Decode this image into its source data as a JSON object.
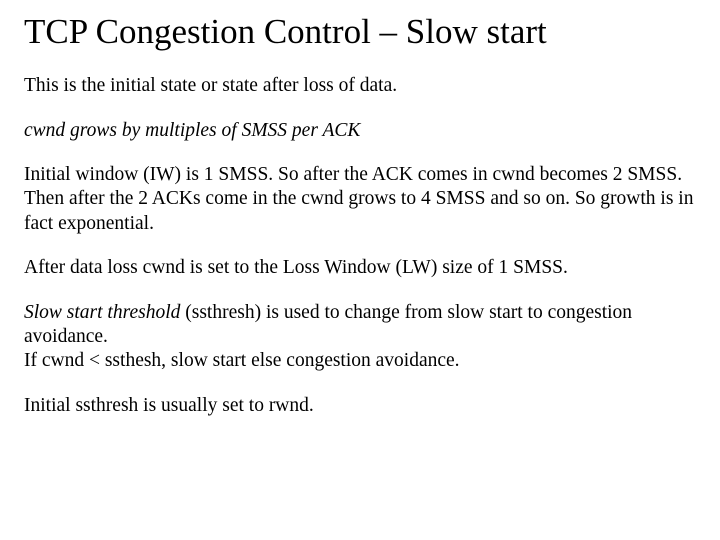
{
  "title_fontsize": 35,
  "body_fontsize": 19.5,
  "text_color": "#000000",
  "background_color": "#ffffff",
  "font_family": "Times New Roman",
  "slide": {
    "title": "TCP Congestion Control – Slow start",
    "p1": "This is the initial state or state after loss of data.",
    "p2": "cwnd grows by multiples of SMSS per ACK",
    "p3": "Initial window (IW) is 1 SMSS. So after the ACK comes in cwnd becomes 2 SMSS. Then after the 2 ACKs come in the cwnd grows to 4 SMSS and so on. So  growth is in fact exponential.",
    "p4": "After data loss cwnd is set to the Loss Window (LW) size of 1 SMSS.",
    "p5_em": "Slow start threshold",
    "p5_rest": " (ssthresh) is used to change from slow start to congestion avoidance.",
    "p5_line2": "If cwnd < ssthesh, slow start else congestion avoidance.",
    "p6": "Initial ssthresh is usually set to rwnd."
  }
}
